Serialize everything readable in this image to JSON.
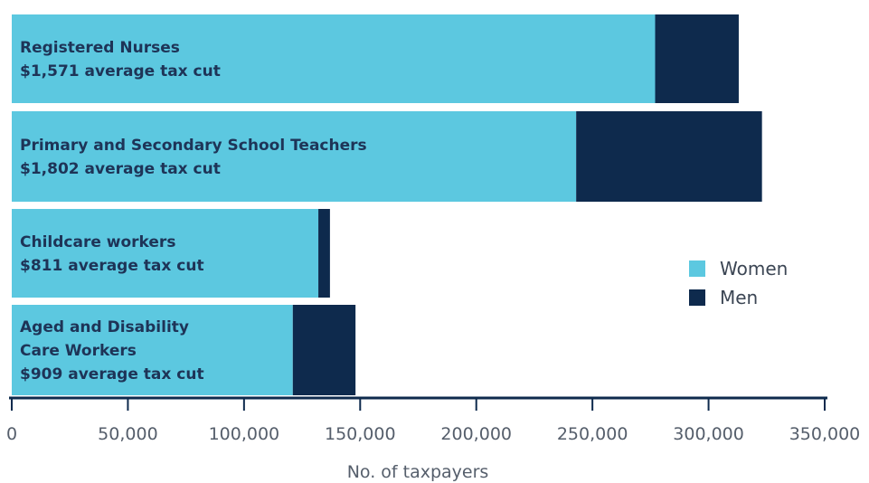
{
  "colors": {
    "women": "#5cc8e0",
    "men": "#0e2a4d",
    "axis": "#0e2a4d"
  },
  "chart_data": {
    "type": "bar",
    "orientation": "horizontal",
    "stacked": true,
    "categories": [
      [
        "Registered Nurses",
        "$1,571 average tax cut"
      ],
      [
        "Primary and Secondary School Teachers",
        "$1,802 average tax cut"
      ],
      [
        "Childcare workers",
        "$811 average tax cut"
      ],
      [
        "Aged and Disability",
        "Care Workers",
        "$909 average tax cut"
      ]
    ],
    "series": [
      {
        "name": "Women",
        "values": [
          277000,
          243000,
          132000,
          121000
        ]
      },
      {
        "name": "Men",
        "values": [
          36000,
          80000,
          5000,
          27000
        ]
      }
    ],
    "xlabel": "No. of taxpayers",
    "xlim": [
      0,
      350000
    ],
    "xticks": [
      0,
      50000,
      100000,
      150000,
      200000,
      250000,
      300000,
      350000
    ],
    "xtick_labels": [
      "0",
      "50,000",
      "100,000",
      "150,000",
      "200,000",
      "250,000",
      "300,000",
      "350,000"
    ],
    "legend": {
      "placement": "right",
      "entries": [
        "Women",
        "Men"
      ]
    }
  }
}
